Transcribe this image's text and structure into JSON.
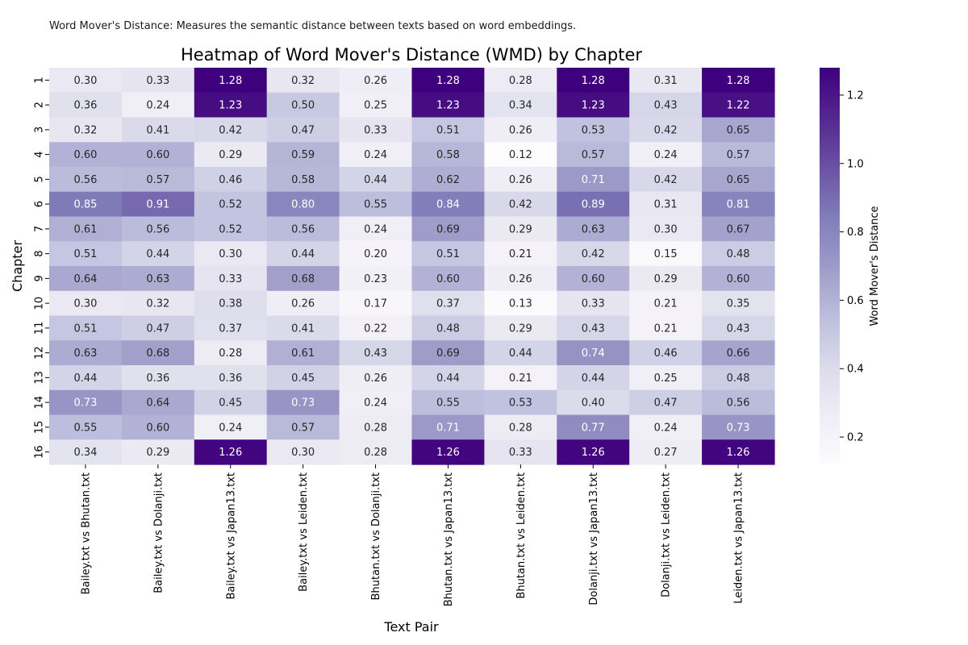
{
  "caption": "Word Mover's Distance: Measures the semantic distance between texts based on word embeddings.",
  "chart_data": {
    "type": "heatmap",
    "title": "Heatmap of Word Mover's Distance (WMD) by Chapter",
    "xlabel": "Text Pair",
    "ylabel": "Chapter",
    "colorbar_label": "Word Mover's Distance",
    "colorbar_ticks": [
      0.2,
      0.4,
      0.6,
      0.8,
      1.0,
      1.2
    ],
    "value_range": [
      0.12,
      1.28
    ],
    "colormap": "purples",
    "colors": {
      "low": "#fcfbfd",
      "high": "#3f007d"
    },
    "columns": [
      "Bailey.txt vs Bhutan.txt",
      "Bailey.txt vs Dolanji.txt",
      "Bailey.txt vs Japan13.txt",
      "Bailey.txt vs Leiden.txt",
      "Bhutan.txt vs Dolanji.txt",
      "Bhutan.txt vs Japan13.txt",
      "Bhutan.txt vs Leiden.txt",
      "Dolanji.txt vs Japan13.txt",
      "Dolanji.txt vs Leiden.txt",
      "Leiden.txt vs Japan13.txt"
    ],
    "rows": [
      "1",
      "2",
      "3",
      "4",
      "5",
      "6",
      "7",
      "8",
      "9",
      "10",
      "11",
      "12",
      "13",
      "14",
      "15",
      "16"
    ],
    "values": [
      [
        0.3,
        0.33,
        1.28,
        0.32,
        0.26,
        1.28,
        0.28,
        1.28,
        0.31,
        1.28
      ],
      [
        0.36,
        0.24,
        1.23,
        0.5,
        0.25,
        1.23,
        0.34,
        1.23,
        0.43,
        1.22
      ],
      [
        0.32,
        0.41,
        0.42,
        0.47,
        0.33,
        0.51,
        0.26,
        0.53,
        0.42,
        0.65
      ],
      [
        0.6,
        0.6,
        0.29,
        0.59,
        0.24,
        0.58,
        0.12,
        0.57,
        0.24,
        0.57
      ],
      [
        0.56,
        0.57,
        0.46,
        0.58,
        0.44,
        0.62,
        0.26,
        0.71,
        0.42,
        0.65
      ],
      [
        0.85,
        0.91,
        0.52,
        0.8,
        0.55,
        0.84,
        0.42,
        0.89,
        0.31,
        0.81
      ],
      [
        0.61,
        0.56,
        0.52,
        0.56,
        0.24,
        0.69,
        0.29,
        0.63,
        0.3,
        0.67
      ],
      [
        0.51,
        0.44,
        0.3,
        0.44,
        0.2,
        0.51,
        0.21,
        0.42,
        0.15,
        0.48
      ],
      [
        0.64,
        0.63,
        0.33,
        0.68,
        0.23,
        0.6,
        0.26,
        0.6,
        0.29,
        0.6
      ],
      [
        0.3,
        0.32,
        0.38,
        0.26,
        0.17,
        0.37,
        0.13,
        0.33,
        0.21,
        0.35
      ],
      [
        0.51,
        0.47,
        0.37,
        0.41,
        0.22,
        0.48,
        0.29,
        0.43,
        0.21,
        0.43
      ],
      [
        0.63,
        0.68,
        0.28,
        0.61,
        0.43,
        0.69,
        0.44,
        0.74,
        0.46,
        0.66
      ],
      [
        0.44,
        0.36,
        0.36,
        0.45,
        0.26,
        0.44,
        0.21,
        0.44,
        0.25,
        0.48
      ],
      [
        0.73,
        0.64,
        0.45,
        0.73,
        0.24,
        0.55,
        0.53,
        0.4,
        0.47,
        0.56
      ],
      [
        0.55,
        0.6,
        0.24,
        0.57,
        0.28,
        0.71,
        0.28,
        0.77,
        0.24,
        0.73
      ],
      [
        0.34,
        0.29,
        1.26,
        0.3,
        0.28,
        1.26,
        0.33,
        1.26,
        0.27,
        1.26
      ]
    ]
  }
}
